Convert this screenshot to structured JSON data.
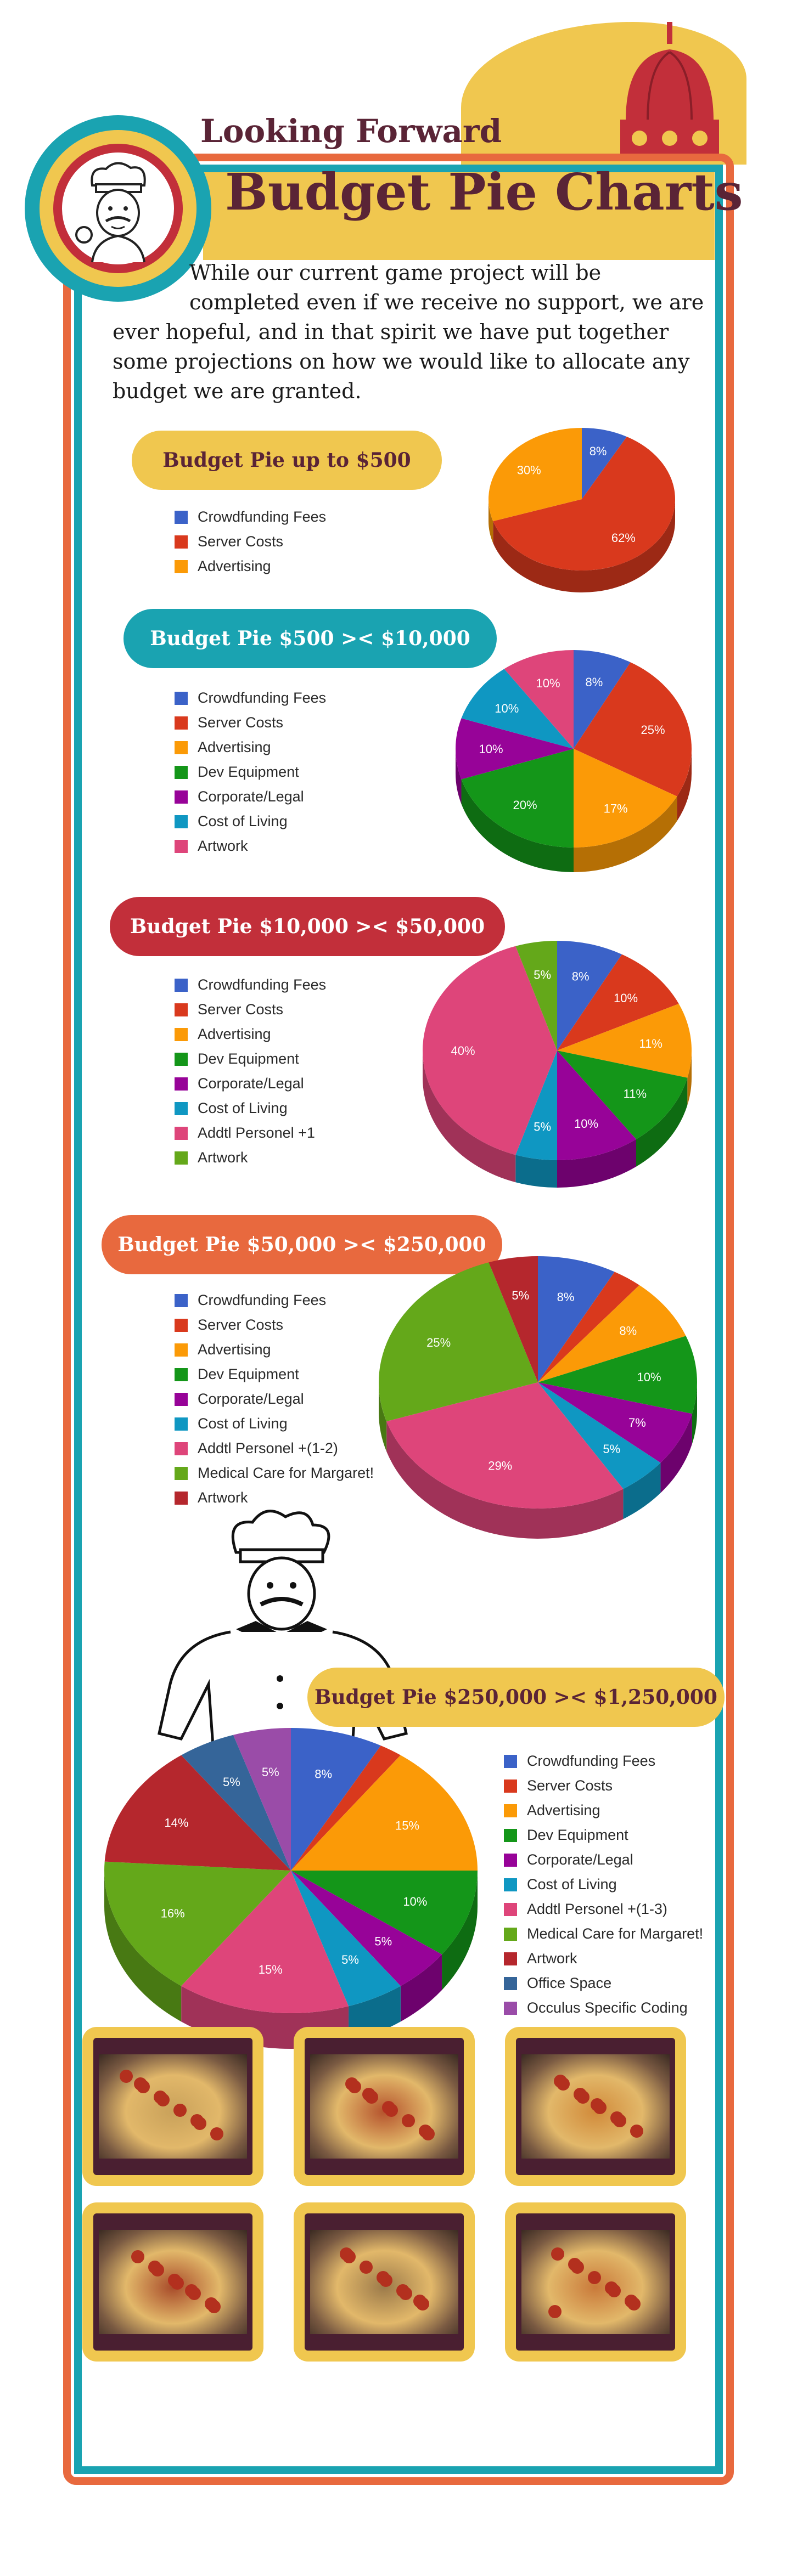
{
  "header": {
    "title_small": "Looking Forward",
    "title_big": "Budget Pie Charts",
    "intro_line1": "While our current game project will be",
    "intro_rest": "completed even if we receive no support, we are ever hopeful, and in that spirit we have put together some projections on how we would like to allocate any budget we are granted."
  },
  "colors": {
    "frame_orange": "#e8693e",
    "frame_teal": "#1aa3b1",
    "accent_yellow": "#f0c74f",
    "title_maroon": "#5a2436"
  },
  "chart_data": [
    {
      "type": "pie",
      "title": "Budget Pie up to $500",
      "pill_color": "#f0c74f",
      "pill_text_color": "#5a2436",
      "legend": [
        "Crowdfunding Fees",
        "Server Costs",
        "Advertising"
      ],
      "colors": [
        "#3b62c8",
        "#d9391d",
        "#fb9a07"
      ],
      "values": [
        8,
        62,
        30
      ],
      "labels": [
        "8%",
        "62%",
        "30%"
      ]
    },
    {
      "type": "pie",
      "title": "Budget Pie $500 >< $10,000",
      "pill_color": "#1aa3b1",
      "pill_text_color": "#ffffff",
      "legend": [
        "Crowdfunding Fees",
        "Server Costs",
        "Advertising",
        "Dev Equipment",
        "Corporate/Legal",
        "Cost of Living",
        "Artwork"
      ],
      "colors": [
        "#3b62c8",
        "#d9391d",
        "#fb9a07",
        "#149619",
        "#970398",
        "#0f97c2",
        "#de457a"
      ],
      "values": [
        8,
        25,
        17,
        20,
        10,
        10,
        10
      ],
      "labels": [
        "8%",
        "25%",
        "17%",
        "20%",
        "10%",
        "10%",
        "10%"
      ]
    },
    {
      "type": "pie",
      "title": "Budget Pie $10,000 >< $50,000",
      "pill_color": "#c22f3a",
      "pill_text_color": "#ffffff",
      "legend": [
        "Crowdfunding Fees",
        "Server Costs",
        "Advertising",
        "Dev Equipment",
        "Corporate/Legal",
        "Cost of Living",
        "Addtl Personel +1",
        "Artwork"
      ],
      "colors": [
        "#3b62c8",
        "#d9391d",
        "#fb9a07",
        "#149619",
        "#970398",
        "#0f97c2",
        "#de457a",
        "#64a81a"
      ],
      "values": [
        8,
        10,
        11,
        11,
        10,
        5,
        40,
        5
      ],
      "labels": [
        "8%",
        "10%",
        "11%",
        "11%",
        "10%",
        "5%",
        "40%",
        "5%"
      ]
    },
    {
      "type": "pie",
      "title": "Budget Pie $50,000 >< $250,000",
      "pill_color": "#e8693e",
      "pill_text_color": "#ffffff",
      "legend": [
        "Crowdfunding Fees",
        "Server Costs",
        "Advertising",
        "Dev Equipment",
        "Corporate/Legal",
        "Cost of Living",
        "Addtl Personel +(1-2)",
        "Medical Care for Margaret!",
        "Artwork"
      ],
      "colors": [
        "#3b62c8",
        "#d9391d",
        "#fb9a07",
        "#149619",
        "#970398",
        "#0f97c2",
        "#de457a",
        "#64a81a",
        "#b5272d"
      ],
      "values": [
        8,
        3,
        8,
        10,
        7,
        5,
        29,
        25,
        5
      ],
      "labels": [
        "8%",
        "",
        "8%",
        "10%",
        "7%",
        "5%",
        "29%",
        "25%",
        "5%"
      ]
    },
    {
      "type": "pie",
      "title": "Budget Pie $250,000 >< $1,250,000",
      "pill_color": "#f0c74f",
      "pill_text_color": "#5a2436",
      "legend": [
        "Crowdfunding Fees",
        "Server Costs",
        "Advertising",
        "Dev Equipment",
        "Corporate/Legal",
        "Cost of Living",
        "Addtl Personel +(1-3)",
        "Medical Care for Margaret!",
        "Artwork",
        "Office Space",
        "Occulus Specific Coding"
      ],
      "colors": [
        "#3b62c8",
        "#d9391d",
        "#fb9a07",
        "#149619",
        "#970398",
        "#0f97c2",
        "#de457a",
        "#64a81a",
        "#b5272d",
        "#356599",
        "#9a4ca8"
      ],
      "values": [
        8,
        2,
        15,
        10,
        5,
        5,
        15,
        16,
        14,
        5,
        5
      ],
      "labels": [
        "8%",
        "",
        "15%",
        "10%",
        "5%",
        "5%",
        "15%",
        "16%",
        "14%",
        "5%",
        "5%"
      ]
    }
  ]
}
